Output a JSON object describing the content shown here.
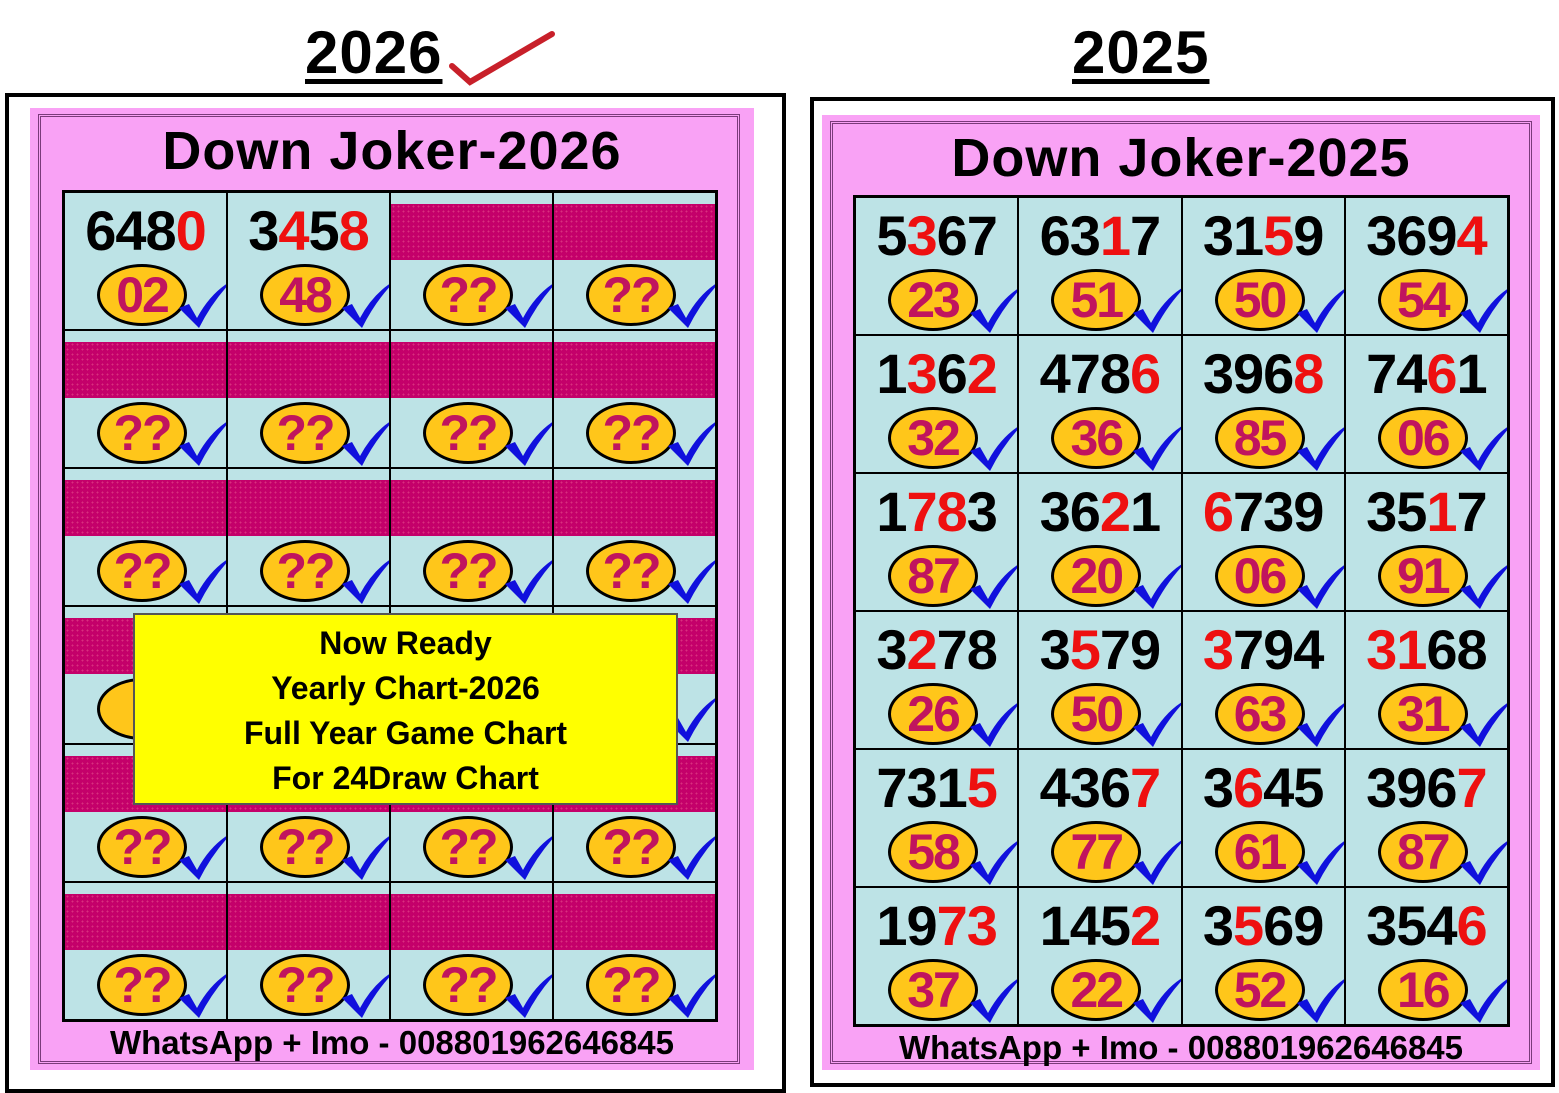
{
  "colors": {
    "panel_bg": "#f9a2f5",
    "cell_bg": "#bde3e6",
    "highlight_digit": "#ee1010",
    "circle": "#ffc61a",
    "circle_text": "#c0145e",
    "check": "#1010dd",
    "hidden_block": "#c4006a",
    "overlay": "#ffff00"
  },
  "left": {
    "heading": "2026",
    "heading_icon": "red-checkmark-icon",
    "title": "Down Joker-2026",
    "footer": "WhatsApp + Imo - 008801962646845",
    "overlay": {
      "lines": [
        "Now Ready",
        "Yearly Chart-2026",
        "Full Year Game Chart",
        "For 24Draw Chart"
      ]
    },
    "cells": [
      {
        "number": "6480",
        "red": [
          3
        ],
        "result": "02"
      },
      {
        "number": "3458",
        "red": [
          1,
          3
        ],
        "result": "48"
      },
      {
        "number": null,
        "result": "??"
      },
      {
        "number": null,
        "result": "??"
      },
      {
        "number": null,
        "result": "??"
      },
      {
        "number": null,
        "result": "??"
      },
      {
        "number": null,
        "result": "??"
      },
      {
        "number": null,
        "result": "??"
      },
      {
        "number": null,
        "result": "??"
      },
      {
        "number": null,
        "result": "??"
      },
      {
        "number": null,
        "result": "??"
      },
      {
        "number": null,
        "result": "??"
      },
      {
        "number": null,
        "result": "??"
      },
      {
        "number": null,
        "result": "??"
      },
      {
        "number": null,
        "result": "??"
      },
      {
        "number": null,
        "result": "??"
      },
      {
        "number": null,
        "result": "??"
      },
      {
        "number": null,
        "result": "??"
      },
      {
        "number": null,
        "result": "??"
      },
      {
        "number": null,
        "result": "??"
      },
      {
        "number": null,
        "result": "??"
      },
      {
        "number": null,
        "result": "??"
      },
      {
        "number": null,
        "result": "??"
      },
      {
        "number": null,
        "result": "??"
      }
    ]
  },
  "right": {
    "heading": "2025",
    "title": "Down Joker-2025",
    "footer": "WhatsApp + Imo - 008801962646845",
    "cells": [
      {
        "number": "5367",
        "red": [
          1
        ],
        "result": "23"
      },
      {
        "number": "6317",
        "red": [
          2
        ],
        "result": "51"
      },
      {
        "number": "3159",
        "red": [
          2
        ],
        "result": "50"
      },
      {
        "number": "3694",
        "red": [
          3
        ],
        "result": "54"
      },
      {
        "number": "1362",
        "red": [
          1,
          3
        ],
        "result": "32"
      },
      {
        "number": "4786",
        "red": [
          3
        ],
        "result": "36"
      },
      {
        "number": "3968",
        "red": [
          3
        ],
        "result": "85"
      },
      {
        "number": "7461",
        "red": [
          2
        ],
        "result": "06"
      },
      {
        "number": "1783",
        "red": [
          1,
          2
        ],
        "result": "87"
      },
      {
        "number": "3621",
        "red": [
          2
        ],
        "result": "20"
      },
      {
        "number": "6739",
        "red": [
          0
        ],
        "result": "06"
      },
      {
        "number": "3517",
        "red": [
          2
        ],
        "result": "91"
      },
      {
        "number": "3278",
        "red": [
          1
        ],
        "result": "26"
      },
      {
        "number": "3579",
        "red": [
          1
        ],
        "result": "50"
      },
      {
        "number": "3794",
        "red": [
          0
        ],
        "result": "63"
      },
      {
        "number": "3168",
        "red": [
          0,
          1
        ],
        "result": "31"
      },
      {
        "number": "7315",
        "red": [
          3
        ],
        "result": "58"
      },
      {
        "number": "4367",
        "red": [
          3
        ],
        "result": "77"
      },
      {
        "number": "3645",
        "red": [
          1
        ],
        "result": "61"
      },
      {
        "number": "3967",
        "red": [
          3
        ],
        "result": "87"
      },
      {
        "number": "1973",
        "red": [
          2,
          3
        ],
        "result": "37"
      },
      {
        "number": "1452",
        "red": [
          3
        ],
        "result": "22"
      },
      {
        "number": "3569",
        "red": [
          1
        ],
        "result": "52"
      },
      {
        "number": "3546",
        "red": [
          3
        ],
        "result": "16"
      }
    ]
  }
}
